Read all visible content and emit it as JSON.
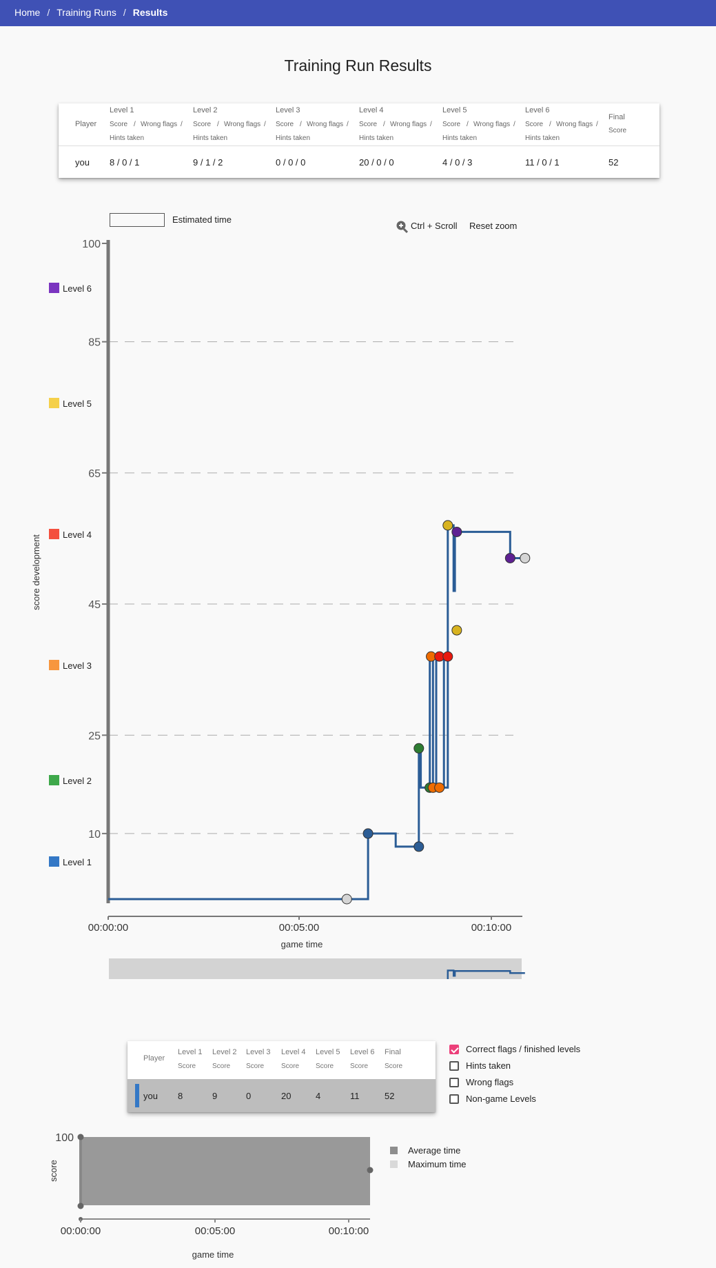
{
  "breadcrumb": {
    "home": "Home",
    "training_runs": "Training Runs",
    "current": "Results"
  },
  "page_title": "Training Run Results",
  "summary_table": {
    "player_header": "Player",
    "levels": [
      "Level 1",
      "Level 2",
      "Level 3",
      "Level 4",
      "Level 5",
      "Level 6"
    ],
    "sub_score": "Score",
    "sub_sep": "/",
    "sub_wrong": "Wrong flags",
    "sub_hints": "Hints taken",
    "final_header": "Final",
    "final_sub": "Score",
    "row": {
      "player": "you",
      "values": [
        "8 / 0 / 1",
        "9 / 1 / 2",
        "0 / 0 / 0",
        "20 / 0 / 0",
        "4 / 0 / 3",
        "11 / 0 / 1"
      ],
      "final": "52"
    }
  },
  "estimated_time_label": "Estimated time",
  "zoom": {
    "hint": "Ctrl + Scroll",
    "reset": "Reset zoom"
  },
  "chart_data": {
    "type": "line",
    "ylabel": "score development",
    "xlabel": "game time",
    "yticks": [
      10,
      25,
      45,
      65,
      85,
      100
    ],
    "ylim": [
      0,
      100
    ],
    "xticks": [
      "00:00:00",
      "00:05:00",
      "00:10:00"
    ],
    "xlim_seconds": [
      0,
      650
    ],
    "legend": [
      {
        "name": "Level 6",
        "color": "#7b35c0"
      },
      {
        "name": "Level 5",
        "color": "#f5d04a"
      },
      {
        "name": "Level 4",
        "color": "#f4503e"
      },
      {
        "name": "Level 3",
        "color": "#f7963e"
      },
      {
        "name": "Level 2",
        "color": "#3ea84a"
      },
      {
        "name": "Level 1",
        "color": "#3478c6"
      }
    ],
    "line_color": "#2b5d96",
    "points": [
      {
        "t": 371,
        "score": 0,
        "color": "#d5d5d5"
      },
      {
        "t": 404,
        "score": 10,
        "color": "#2c5d95"
      },
      {
        "t": 483,
        "score": 8,
        "color": "#2c5d95"
      },
      {
        "t": 483,
        "score": 23,
        "color": "#2e7d32"
      },
      {
        "t": 500,
        "score": 17,
        "color": "#2e7d32"
      },
      {
        "t": 502,
        "score": 37,
        "color": "#ef6c00"
      },
      {
        "t": 505,
        "score": 17,
        "color": "#ef6c00"
      },
      {
        "t": 515,
        "score": 17,
        "color": "#ef6c00"
      },
      {
        "t": 515,
        "score": 37,
        "color": "#e8190f"
      },
      {
        "t": 528,
        "score": 37,
        "color": "#e8190f"
      },
      {
        "t": 528,
        "score": 57,
        "color": "#d8b320"
      },
      {
        "t": 542,
        "score": 41,
        "color": "#d8b320"
      },
      {
        "t": 542,
        "score": 56,
        "color": "#5e2193"
      },
      {
        "t": 625,
        "score": 52,
        "color": "#5e2193"
      },
      {
        "t": 648,
        "score": 52,
        "color": "#d5d5d5"
      }
    ],
    "line_path": [
      [
        0,
        0
      ],
      [
        404,
        0
      ],
      [
        404,
        10
      ],
      [
        447,
        10
      ],
      [
        447,
        8
      ],
      [
        483,
        8
      ],
      [
        483,
        23
      ],
      [
        486,
        23
      ],
      [
        486,
        17
      ],
      [
        500,
        17
      ],
      [
        500,
        37
      ],
      [
        505,
        37
      ],
      [
        505,
        17
      ],
      [
        510,
        17
      ],
      [
        510,
        37
      ],
      [
        522,
        37
      ],
      [
        522,
        17
      ],
      [
        528,
        17
      ],
      [
        528,
        57
      ],
      [
        537,
        57
      ],
      [
        537,
        47
      ],
      [
        539,
        47
      ],
      [
        539,
        56
      ],
      [
        625,
        56
      ],
      [
        625,
        52
      ],
      [
        648,
        52
      ]
    ]
  },
  "overview": {
    "xticks": [
      "00:00:00",
      "00:05:00",
      "00:10:00"
    ]
  },
  "score_table": {
    "player_header": "Player",
    "levels": [
      "Level 1",
      "Level 2",
      "Level 3",
      "Level 4",
      "Level 5",
      "Level 6",
      "Final"
    ],
    "sub": "Score",
    "row": {
      "player": "you",
      "values": [
        "8",
        "9",
        "0",
        "20",
        "4",
        "11",
        "52"
      ]
    }
  },
  "filters": [
    {
      "label": "Correct flags / finished levels",
      "checked": true
    },
    {
      "label": "Hints taken",
      "checked": false
    },
    {
      "label": "Wrong flags",
      "checked": false
    },
    {
      "label": "Non-game Levels",
      "checked": false
    }
  ],
  "bottom_chart": {
    "ylabel": "score",
    "ytick": "100",
    "xlabel": "game time",
    "xticks": [
      "00:00:00",
      "00:05:00",
      "00:10:00"
    ],
    "legend": [
      {
        "name": "Average time",
        "color": "#8e8e8e"
      },
      {
        "name": "Maximum time",
        "color": "#d9d9d9"
      }
    ]
  }
}
